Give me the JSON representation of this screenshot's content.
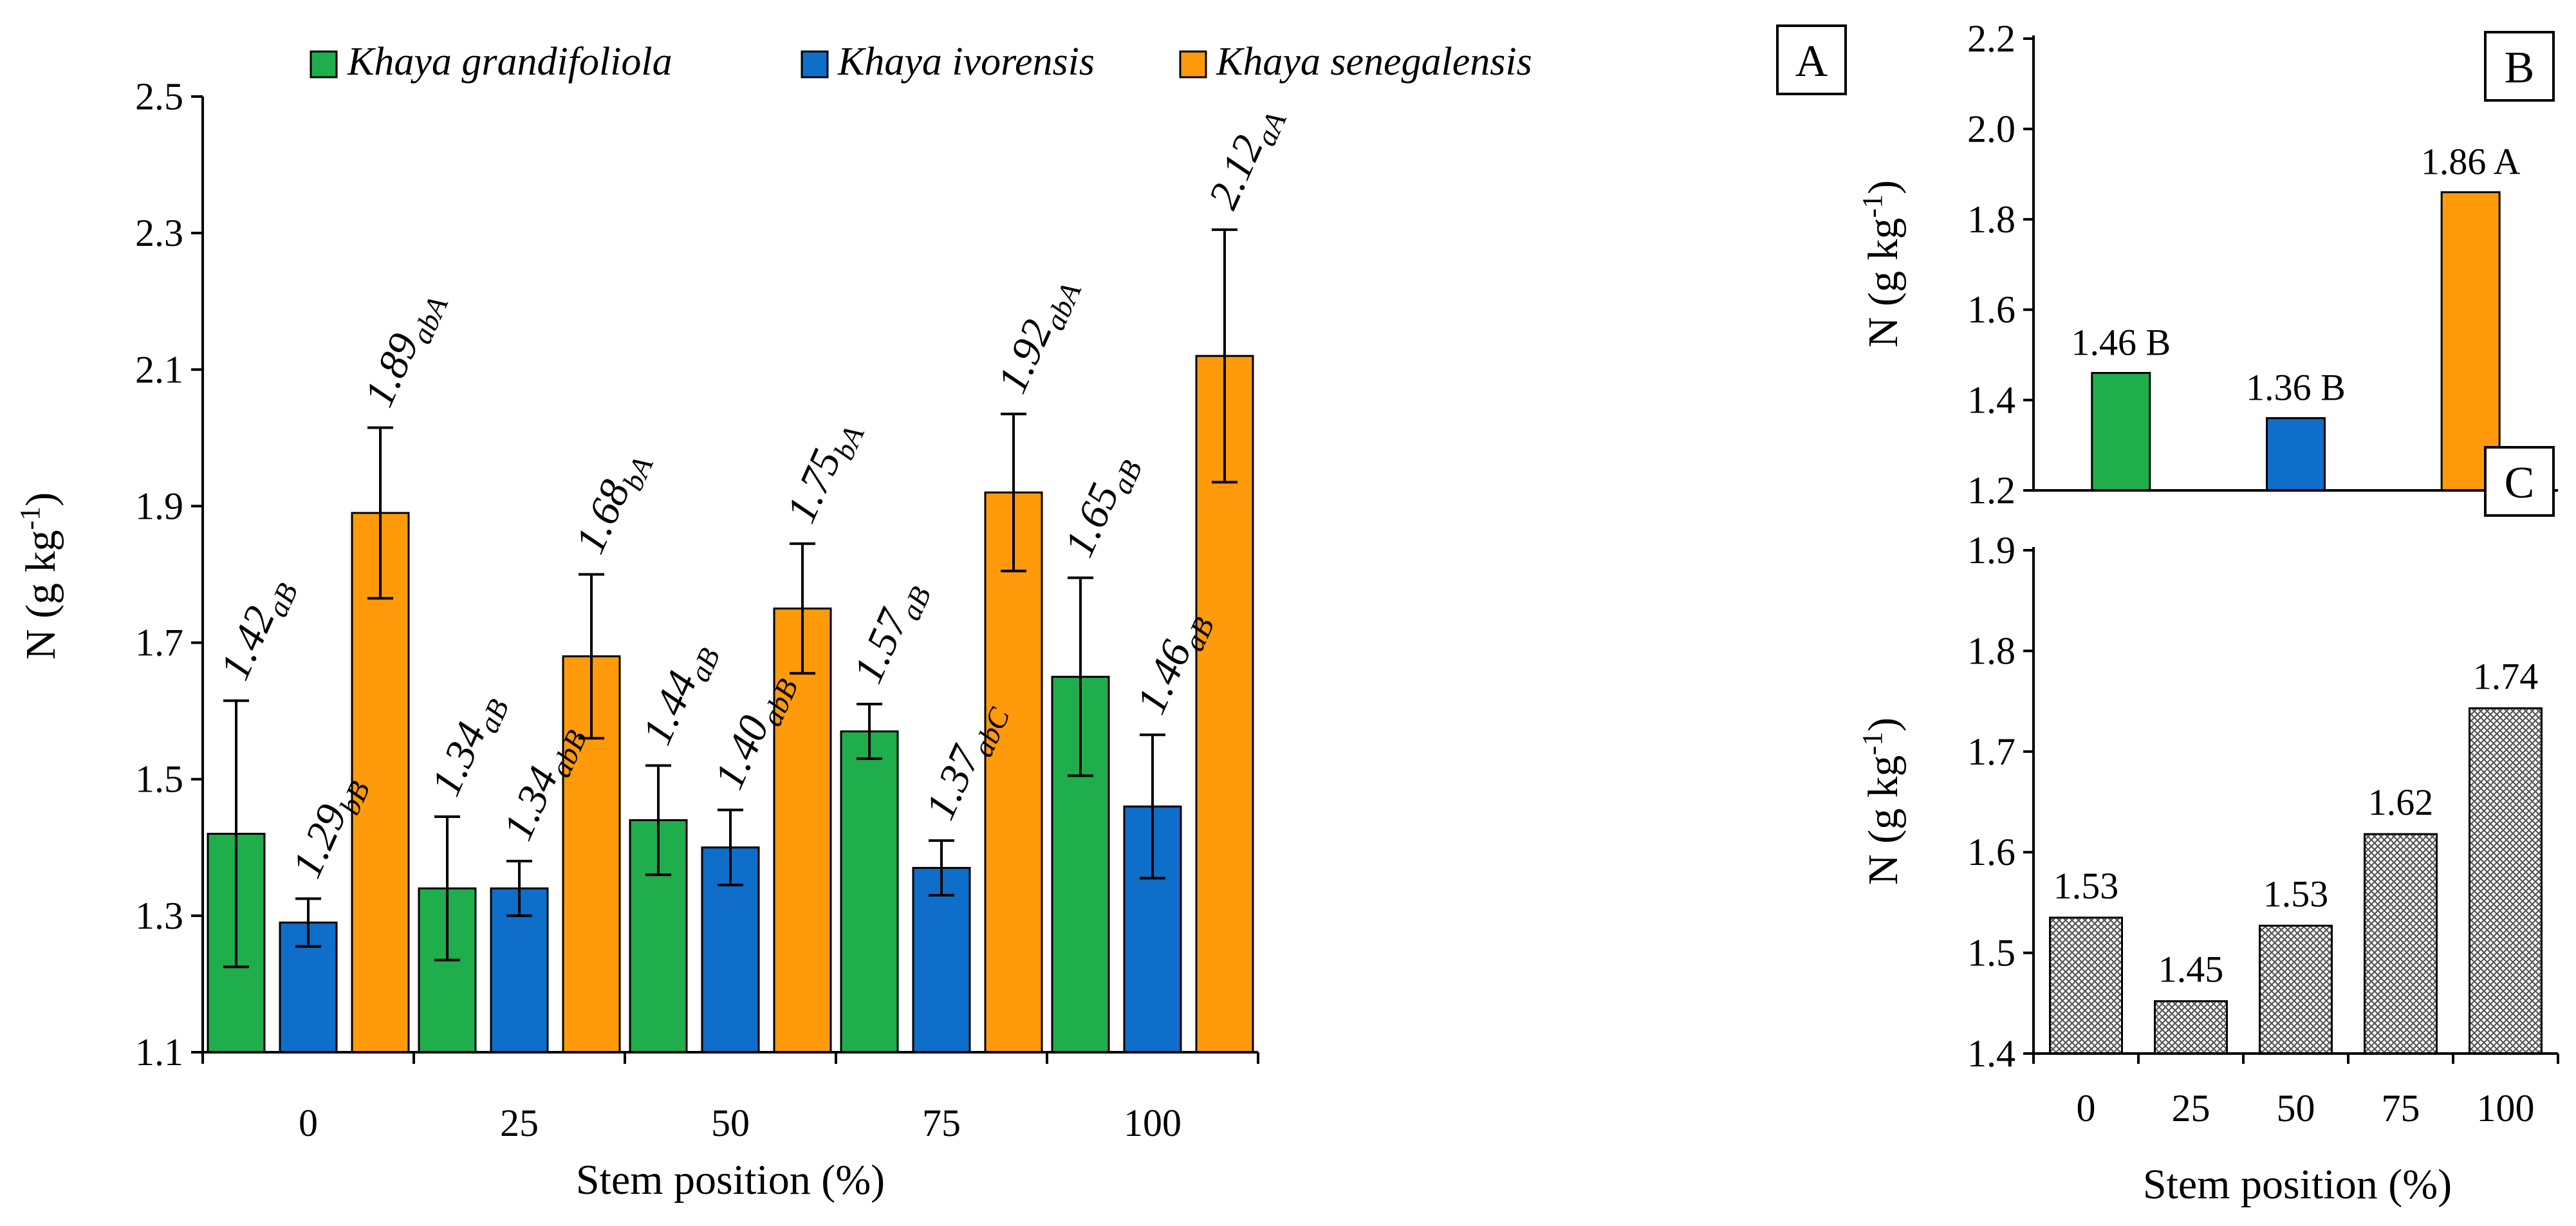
{
  "figure": {
    "colors": {
      "Khaya grandifoliola": "#1fae4b",
      "Khaya ivorensis": "#0e6ec9",
      "Khaya senegalensis": "#ff9a0a",
      "hatch": "#7a7a7a"
    }
  },
  "chart_data": [
    {
      "panel": "A",
      "type": "bar",
      "xlabel": "Stem position (%)",
      "ylabel": "N (g kg-1)",
      "ylabel_base": "N (g kg",
      "ylabel_sup": "-1",
      "ylabel_close": ")",
      "ylim": [
        1.1,
        2.5
      ],
      "yticks": [
        "1.1",
        "1.3",
        "1.5",
        "1.7",
        "1.9",
        "2.1",
        "2.3",
        "2.5"
      ],
      "categories": [
        "0",
        "25",
        "50",
        "75",
        "100"
      ],
      "series": [
        {
          "name": "Khaya grandifoliola",
          "values": [
            1.42,
            1.34,
            1.44,
            1.57,
            1.65
          ],
          "errors": [
            0.195,
            0.105,
            0.08,
            0.04,
            0.145
          ],
          "labels": [
            "1.42",
            "1.34",
            "1.44",
            "1.57",
            "1.65"
          ],
          "letters": [
            "aB",
            "aB",
            "aB",
            "aB",
            "aB"
          ]
        },
        {
          "name": "Khaya ivorensis",
          "values": [
            1.29,
            1.34,
            1.4,
            1.37,
            1.46
          ],
          "errors": [
            0.035,
            0.04,
            0.055,
            0.04,
            0.105
          ],
          "labels": [
            "1.29",
            "1.34",
            "1.40",
            "1.37",
            "1.46"
          ],
          "letters": [
            "bB",
            "abB",
            "abB",
            "abC",
            "aB"
          ]
        },
        {
          "name": "Khaya senegalensis",
          "values": [
            1.89,
            1.68,
            1.75,
            1.92,
            2.12
          ],
          "errors": [
            0.125,
            0.12,
            0.095,
            0.115,
            0.185
          ],
          "labels": [
            "1.89",
            "1.68",
            "1.75",
            "1.92",
            "2.12"
          ],
          "letters": [
            "abA",
            "bA",
            "bA",
            "abA",
            "aA"
          ]
        }
      ]
    },
    {
      "panel": "B",
      "type": "bar",
      "ylabel": "N (g kg-1)",
      "ylim": [
        1.2,
        2.2
      ],
      "yticks": [
        "1.2",
        "1.4",
        "1.6",
        "1.8",
        "2.0",
        "2.2"
      ],
      "categories": [
        "Khaya grandifoliola",
        "Khaya ivorensis",
        "Khaya senegalensis"
      ],
      "values": [
        1.46,
        1.36,
        1.86
      ],
      "labels": [
        "1.46 B",
        "1.36 B",
        "1.86 A"
      ]
    },
    {
      "panel": "C",
      "type": "bar",
      "xlabel": "Stem position (%)",
      "ylabel": "N (g kg-1)",
      "ylim": [
        1.4,
        1.9
      ],
      "yticks": [
        "1.4",
        "1.5",
        "1.6",
        "1.7",
        "1.8",
        "1.9"
      ],
      "categories": [
        "0",
        "25",
        "50",
        "75",
        "100"
      ],
      "values": [
        1.535,
        1.452,
        1.527,
        1.618,
        1.743
      ],
      "labels": [
        "1.53",
        "1.45",
        "1.53",
        "1.62",
        "1.74"
      ]
    }
  ]
}
